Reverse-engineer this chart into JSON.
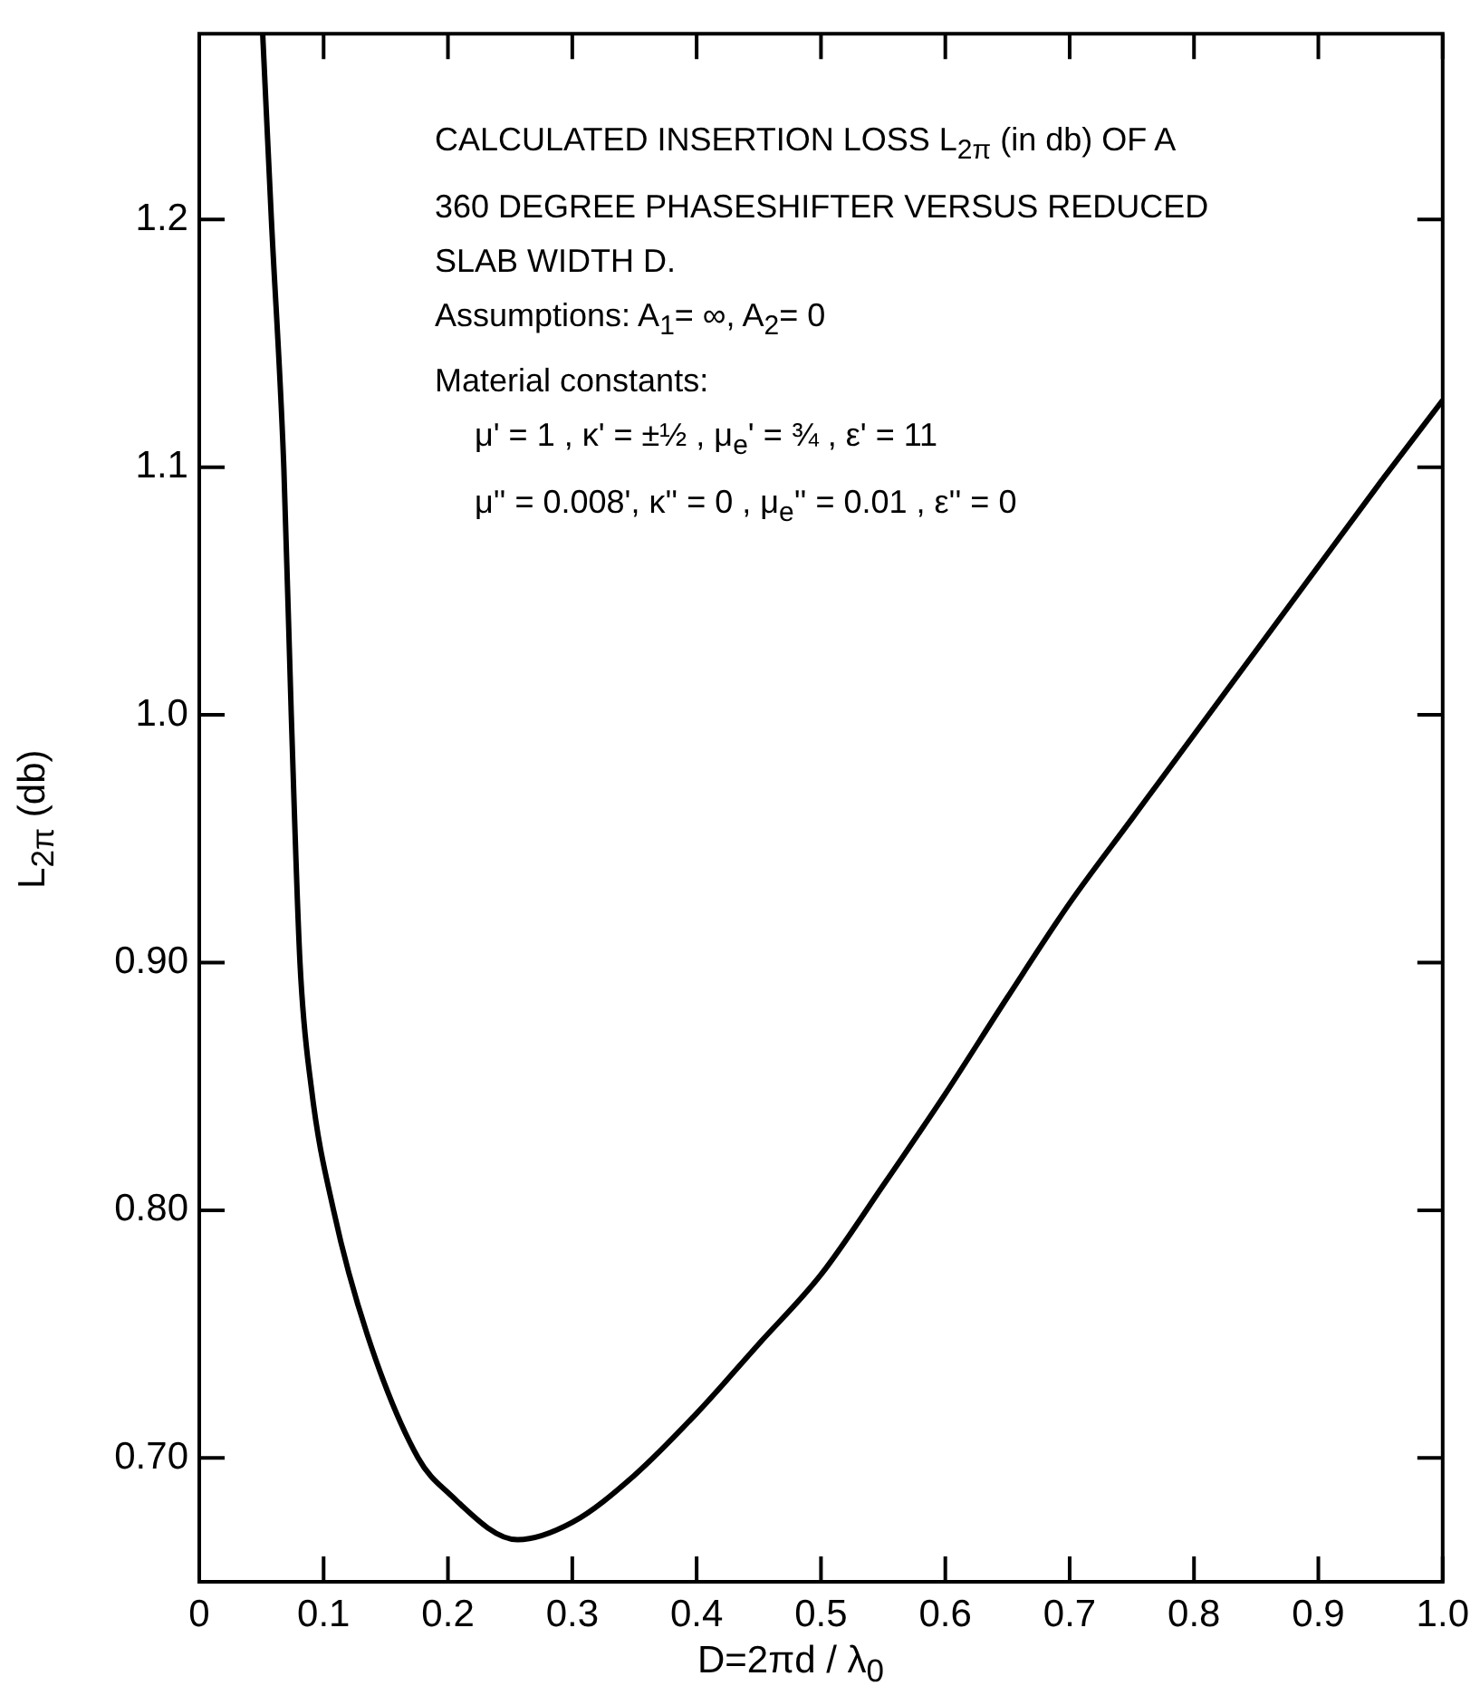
{
  "chart_data": {
    "type": "line",
    "xlabel": "D=2πd / λ$_{0}$",
    "ylabel": "L$_{2π}$ (db)",
    "annotations": [
      "CALCULATED INSERTION LOSS L$_{2π}$ (in db) OF A",
      "360 DEGREE PHASESHIFTER VERSUS REDUCED",
      "SLAB WIDTH D.",
      "Assumptions: A$_{1}$= ∞, A$_{2}$= 0",
      "Material constants:",
      "μ' = 1 , κ' = ±½ , μ$_{e}$' = ¾ , ε' = 11",
      "μ'' = 0.008', κ'' = 0 , μ$_{e}$'' = 0.01 , ε'' = 0"
    ],
    "series": [
      {
        "color": "#000000",
        "x": [
          0.051,
          0.058,
          0.068,
          0.074,
          0.081,
          0.09,
          0.108,
          0.135,
          0.176,
          0.2,
          0.256,
          0.3,
          0.35,
          0.4,
          0.45,
          0.5,
          0.55,
          0.6,
          0.65,
          0.7,
          0.75,
          0.8,
          0.85,
          0.9,
          0.95,
          1.0
        ],
        "values": [
          1.275,
          1.2,
          1.1,
          1.0,
          0.9,
          0.85,
          0.8,
          0.75,
          0.7,
          0.686,
          0.667,
          0.674,
          0.693,
          0.718,
          0.746,
          0.774,
          0.81,
          0.847,
          0.886,
          0.924,
          0.958,
          0.992,
          1.026,
          1.06,
          1.094,
          1.127
        ]
      }
    ],
    "xlim": [
      0,
      1
    ],
    "xticks": [
      0,
      0.1,
      0.2,
      0.3,
      0.4,
      0.5,
      0.6,
      0.7,
      0.8,
      0.9,
      {
        "value": 1,
        "label": "1.0"
      }
    ],
    "ylim": [
      0.65,
      1.275
    ],
    "yticks": [
      {
        "value": 0.7,
        "label": "0.70"
      },
      {
        "value": 0.8,
        "label": "0.80"
      },
      {
        "value": 0.9,
        "label": "0.90"
      },
      {
        "value": 1,
        "label": "1.0"
      },
      1.1,
      1.2
    ],
    "grid": false,
    "legend": false,
    "marker": "none",
    "line_style": "solid"
  }
}
